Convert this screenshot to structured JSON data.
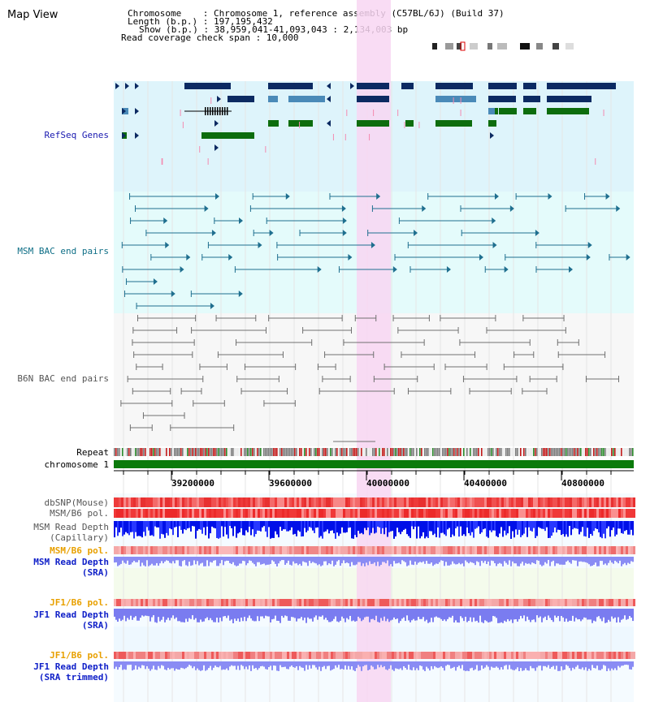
{
  "title": "Map View",
  "header": {
    "chromosome": "Chromosome    : Chromosome 1, reference assembly (C57BL/6J) (Build 37)",
    "length": "Length (b.p.) : 197,195,432",
    "show": "Show (b.p.) : 38,959,041-41,093,043 : 2,134,003 bp",
    "coverage": "Read coverage check span : 10,000"
  },
  "tracks": {
    "refseq": "RefSeq Genes",
    "msm_bac": "MSM BAC end pairs",
    "b6n_bac": "B6N BAC end pairs",
    "repeat": "Repeat",
    "chromosome": "chromosome 1",
    "dbsnp": "dbSNP(Mouse)",
    "msm_b6_pol_1": "MSM/B6 pol.",
    "msm_read_depth_cap_1": "MSM Read Depth",
    "msm_read_depth_cap_2": "(Capillary)",
    "msm_b6_pol_2": "MSM/B6 pol.",
    "msm_read_depth_sra_1": "MSM Read Depth",
    "msm_read_depth_sra_2": "(SRA)",
    "jf1_b6_pol_1": "JF1/B6 pol.",
    "jf1_read_depth_1": "JF1 Read Depth",
    "jf1_read_depth_2": "(SRA)",
    "jf1_b6_pol_2": "JF1/B6 pol.",
    "jf1_trim_1": "JF1 Read Depth",
    "jf1_trim_2": "(SRA trimmed)"
  },
  "ruler": {
    "ticks": [
      "39200000",
      "39600000",
      "40000000",
      "40400000",
      "40800000"
    ]
  },
  "colors": {
    "refseq_bg": "#def4fb",
    "msm_bg": "#e4fbfb",
    "b6n_bg": "#f7f7f7",
    "highlight": "#f8d6f2",
    "refseq_label": "#1a1ab0",
    "msm_label": "#0e6e86",
    "b6n_label": "#555555",
    "orange_label": "#e8a000",
    "blue_label": "#1020c8",
    "gene_dark": "#0c2a62",
    "gene_mid": "#4a8ab8",
    "gene_green": "#0d6d0d",
    "pair_msm": "#1f6f8f",
    "pair_b6n": "#707070",
    "chromosome_bar": "#0b7a0b"
  }
}
